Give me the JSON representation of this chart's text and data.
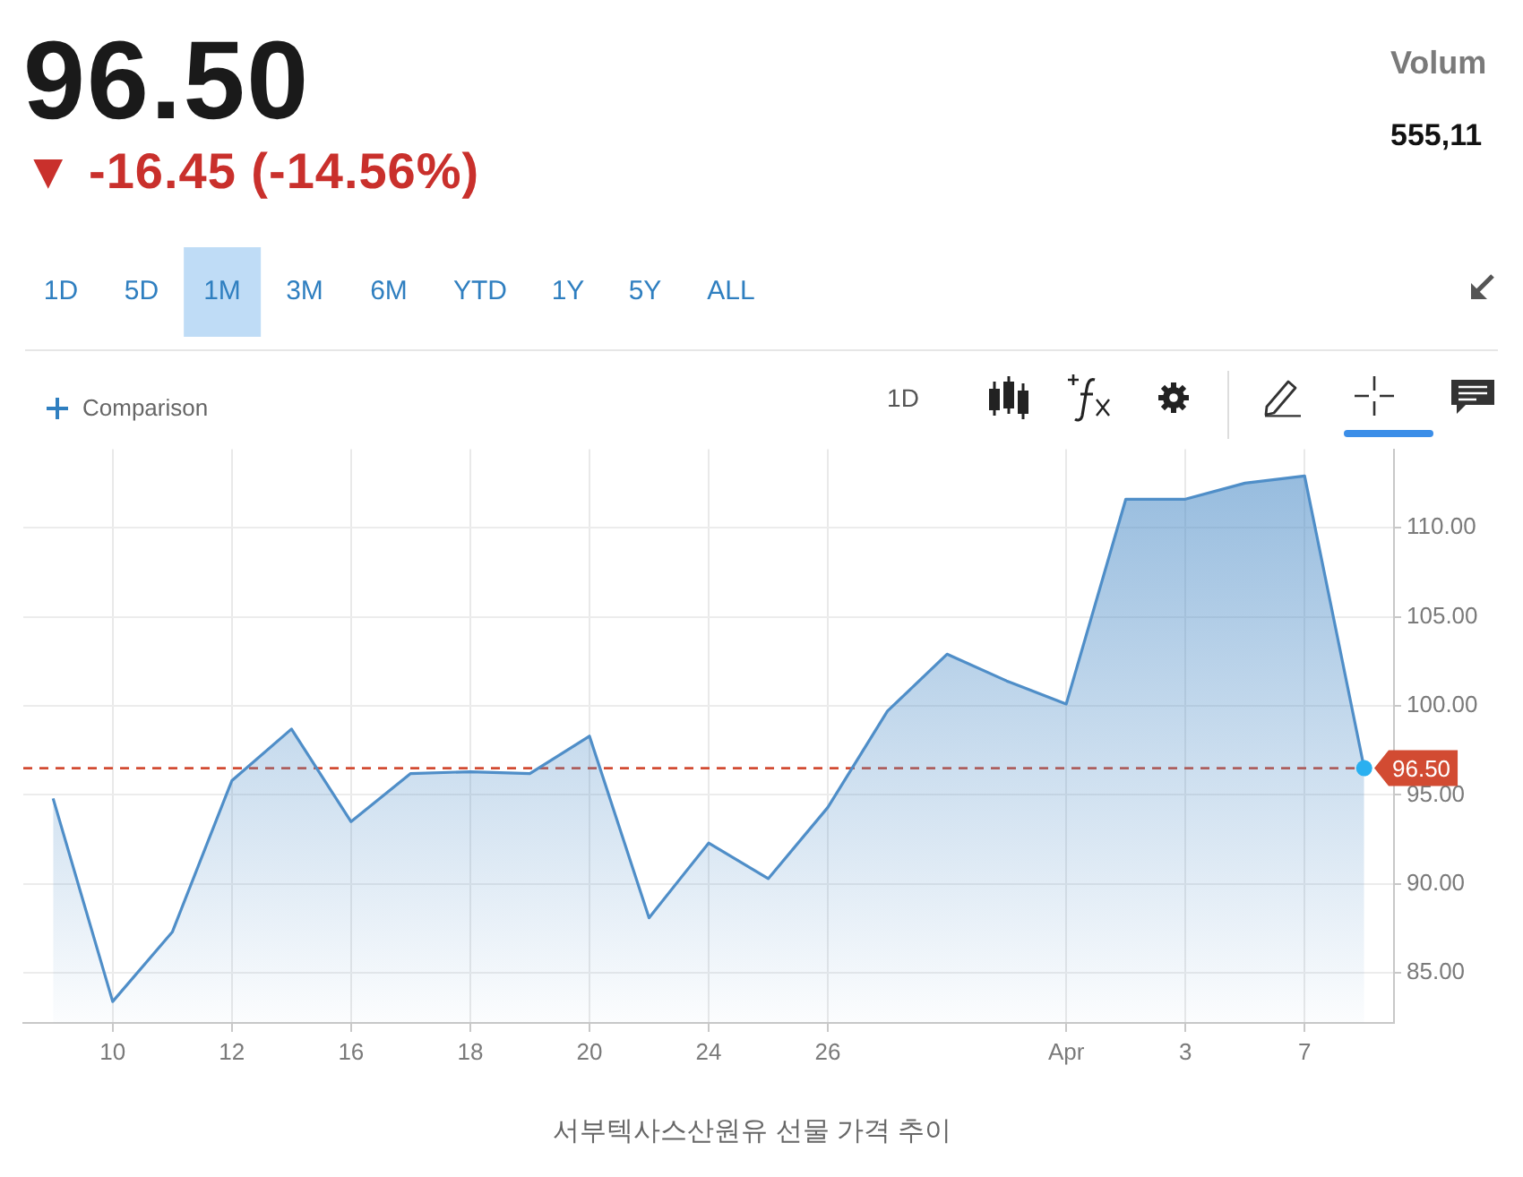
{
  "chart_data": {
    "type": "area",
    "title": "96.50",
    "subtitle": "▼ -16.45 (-14.56%)",
    "categories": [
      null,
      "10",
      null,
      "12",
      null,
      "16",
      null,
      "18",
      null,
      "20",
      null,
      "24",
      null,
      "26",
      null,
      null,
      null,
      "Apr",
      null,
      "3",
      null,
      "7",
      null
    ],
    "series": [
      {
        "color": "#4f8ec8",
        "values": [
          94.8,
          83.4,
          87.3,
          95.8,
          98.7,
          93.5,
          96.2,
          96.3,
          96.2,
          98.3,
          88.1,
          92.3,
          90.3,
          94.3,
          99.7,
          102.9,
          101.4,
          100.1,
          111.6,
          111.6,
          112.5,
          112.9,
          96.5
        ]
      },
      {
        "type": "scatter",
        "color": "#2ab0f0",
        "values": [
          null,
          null,
          null,
          null,
          null,
          null,
          null,
          null,
          null,
          null,
          null,
          null,
          null,
          null,
          null,
          null,
          null,
          null,
          null,
          null,
          null,
          null,
          96.5
        ]
      }
    ],
    "ylim": [
      82.2,
      114.4
    ],
    "yticks": [
      {
        "value": 85,
        "label": "85.00"
      },
      {
        "value": 90,
        "label": "90.00"
      },
      {
        "value": 95,
        "label": "95.00"
      },
      {
        "value": 100,
        "label": "100.00"
      },
      {
        "value": 105,
        "label": "105.00"
      },
      {
        "value": 110,
        "label": "110.00"
      }
    ],
    "grid": true,
    "ref_lines": [
      {
        "axis": "y",
        "value": 96.5,
        "label": "96.50",
        "color": "#d24b32",
        "line_style": "dashed"
      }
    ],
    "annotations": [
      "Volum",
      "555,11",
      "1D",
      "5D",
      "1M",
      "3M",
      "6M",
      "YTD",
      "1Y",
      "5Y",
      "ALL",
      "Comparison",
      "1D",
      "서부텍사스산원유 선물 가격 추이"
    ]
  }
}
